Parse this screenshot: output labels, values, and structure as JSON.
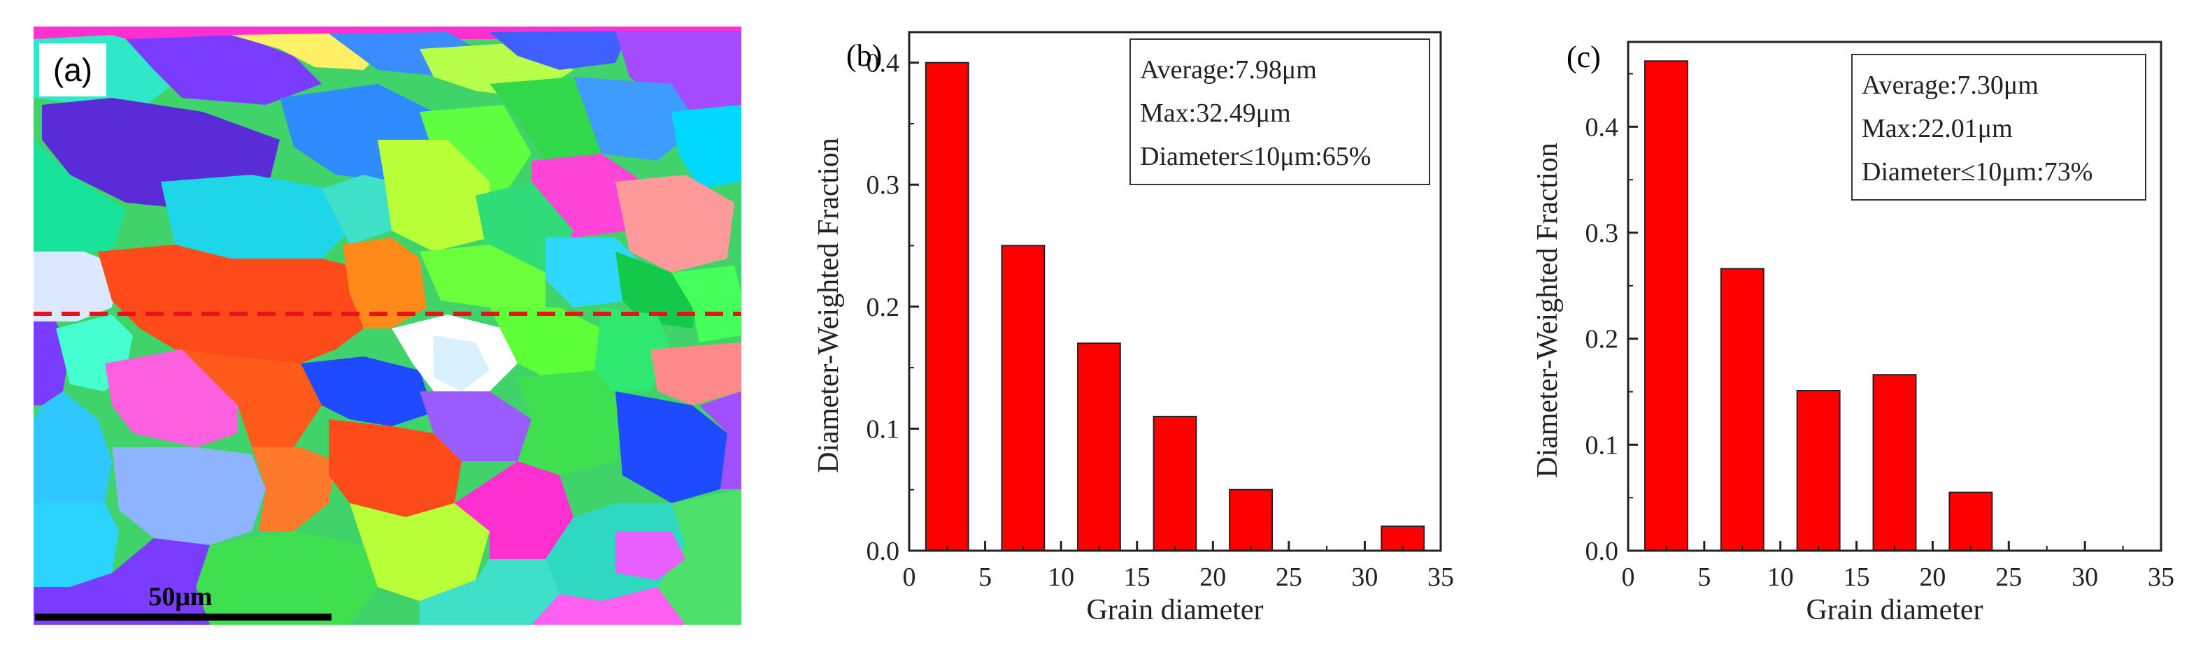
{
  "panel_a": {
    "label": "(a)",
    "scale_bar_label": "50μm",
    "scale_bar_color": "#000000",
    "dashed_line_color": "#e8121a"
  },
  "chart_data": [
    {
      "panel": "(b)",
      "type": "bar",
      "xlabel": "Grain diameter",
      "ylabel": "Diameter-Weighted Fraction",
      "categories": [
        2.5,
        7.5,
        12.5,
        17.5,
        22.5,
        27.5,
        32.5
      ],
      "values": [
        0.4,
        0.25,
        0.17,
        0.11,
        0.05,
        0.0,
        0.02
      ],
      "xlim": [
        0,
        35
      ],
      "ylim": [
        0,
        0.425
      ],
      "xticks": [
        0,
        5,
        10,
        15,
        20,
        25,
        30,
        35
      ],
      "yticks": [
        0.0,
        0.1,
        0.2,
        0.3,
        0.4
      ],
      "ytick_labels": [
        "0.0",
        "0.1",
        "0.2",
        "0.3",
        "0.4"
      ],
      "bar_color": "#ff0000",
      "legend_position": "top-right",
      "stats": [
        "Average:7.98μm",
        "Max:32.49μm",
        "Diameter≤10μm:65%"
      ]
    },
    {
      "panel": "(c)",
      "type": "bar",
      "xlabel": "Grain diameter",
      "ylabel": "Diameter-Weighted Fraction",
      "categories": [
        2.5,
        7.5,
        12.5,
        17.5,
        22.5,
        27.5,
        32.5
      ],
      "values": [
        0.462,
        0.266,
        0.151,
        0.166,
        0.055,
        0.0,
        0.0
      ],
      "xlim": [
        0,
        35
      ],
      "ylim": [
        0,
        0.48
      ],
      "xticks": [
        0,
        5,
        10,
        15,
        20,
        25,
        30,
        35
      ],
      "yticks": [
        0.0,
        0.1,
        0.2,
        0.3,
        0.4
      ],
      "ytick_labels": [
        "0.0",
        "0.1",
        "0.2",
        "0.3",
        "0.4"
      ],
      "bar_color": "#ff0000",
      "legend_position": "top-right",
      "stats": [
        "Average:7.30μm",
        "Max:22.01μm",
        "Diameter≤10μm:73%"
      ]
    }
  ]
}
